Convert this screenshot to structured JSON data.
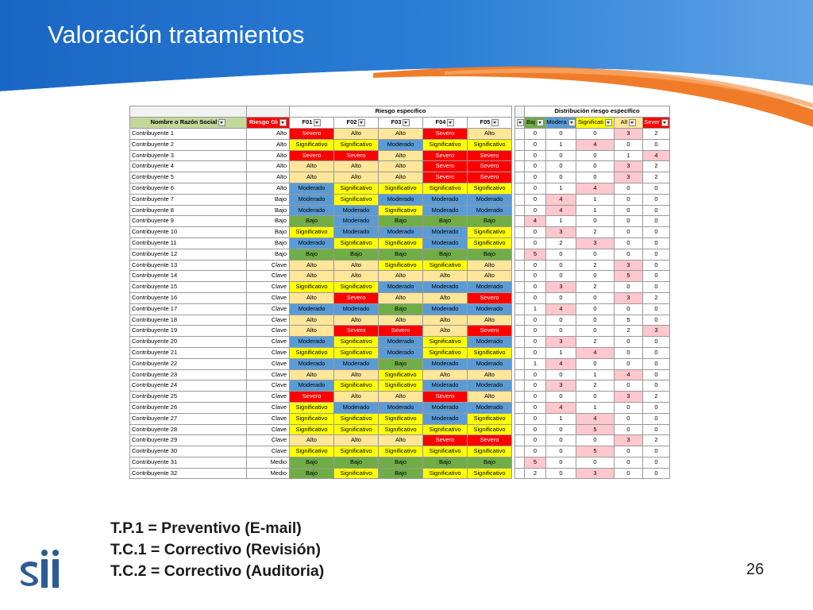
{
  "slide": {
    "title": "Valoración tratamientos",
    "page_number": "26",
    "notes": [
      "T.P.1 = Preventivo (E-mail)",
      "T.C.1 = Correctivo (Revisión)",
      "T.C.2 = Correctivo (Auditoria)"
    ],
    "logo_text": "Sii"
  },
  "colors": {
    "banner_blue": "#1f6fc5",
    "accent_orange": "#f07c2a",
    "severo": "#ff0000",
    "alto": "#ffe699",
    "significativo": "#ffff00",
    "moderado": "#5b9bd5",
    "bajo": "#70ad47",
    "dist_highlight": "#ffc7ce"
  },
  "table": {
    "group_specific": "Riesgo específico",
    "group_distribution": "Distribución riesgo específico",
    "headers": {
      "name": "Nombre o Razón Social",
      "global": "Riesgo Glo",
      "factors": [
        "F01",
        "F02",
        "F03",
        "F04",
        "F05"
      ],
      "distribution": [
        "Baj",
        "Modera",
        "Significati",
        "Alt",
        "Sever"
      ]
    },
    "rows": [
      {
        "name": "Contribuyente 1",
        "global": "Alto",
        "f": [
          "Severo",
          "Alto",
          "Alto",
          "Severo",
          "Alto"
        ],
        "d": [
          "0",
          "0",
          "0",
          "3",
          "2"
        ],
        "dh": [
          false,
          false,
          false,
          true,
          false
        ]
      },
      {
        "name": "Contribuyente 2",
        "global": "Alto",
        "f": [
          "Significativo",
          "Significativo",
          "Moderado",
          "Significativo",
          "Significativo"
        ],
        "d": [
          "0",
          "1",
          "4",
          "0",
          "0"
        ],
        "dh": [
          false,
          false,
          true,
          false,
          false
        ]
      },
      {
        "name": "Contribuyente 3",
        "global": "Alto",
        "f": [
          "Severo",
          "Severo",
          "Alto",
          "Severo",
          "Severo"
        ],
        "d": [
          "0",
          "0",
          "0",
          "1",
          "4"
        ],
        "dh": [
          false,
          false,
          false,
          false,
          true
        ]
      },
      {
        "name": "Contribuyente 4",
        "global": "Alto",
        "f": [
          "Alto",
          "Alto",
          "Alto",
          "Severo",
          "Severo"
        ],
        "d": [
          "0",
          "0",
          "0",
          "3",
          "2"
        ],
        "dh": [
          false,
          false,
          false,
          true,
          false
        ]
      },
      {
        "name": "Contribuyente 5",
        "global": "Alto",
        "f": [
          "Alto",
          "Alto",
          "Alto",
          "Severo",
          "Severo"
        ],
        "d": [
          "0",
          "0",
          "0",
          "3",
          "2"
        ],
        "dh": [
          false,
          false,
          false,
          true,
          false
        ]
      },
      {
        "name": "Contribuyente 6",
        "global": "Alto",
        "f": [
          "Moderado",
          "Significativo",
          "Significativo",
          "Significativo",
          "Significativo"
        ],
        "d": [
          "0",
          "1",
          "4",
          "0",
          "0"
        ],
        "dh": [
          false,
          false,
          true,
          false,
          false
        ]
      },
      {
        "name": "Contribuyente 7",
        "global": "Bajo",
        "f": [
          "Moderado",
          "Significativo",
          "Moderado",
          "Moderado",
          "Moderado"
        ],
        "d": [
          "0",
          "4",
          "1",
          "0",
          "0"
        ],
        "dh": [
          false,
          true,
          false,
          false,
          false
        ]
      },
      {
        "name": "Contribuyente 8",
        "global": "Bajo",
        "f": [
          "Moderado",
          "Moderado",
          "Significativo",
          "Moderado",
          "Moderado"
        ],
        "d": [
          "0",
          "4",
          "1",
          "0",
          "0"
        ],
        "dh": [
          false,
          true,
          false,
          false,
          false
        ]
      },
      {
        "name": "Contribuyente 9",
        "global": "Bajo",
        "f": [
          "Bajo",
          "Moderado",
          "Bajo",
          "Bajo",
          "Bajo"
        ],
        "d": [
          "4",
          "1",
          "0",
          "0",
          "0"
        ],
        "dh": [
          true,
          false,
          false,
          false,
          false
        ]
      },
      {
        "name": "Contribuyente 10",
        "global": "Bajo",
        "f": [
          "Significativo",
          "Moderado",
          "Moderado",
          "Moderado",
          "Significativo"
        ],
        "d": [
          "0",
          "3",
          "2",
          "0",
          "0"
        ],
        "dh": [
          false,
          true,
          false,
          false,
          false
        ]
      },
      {
        "name": "Contribuyente 11",
        "global": "Bajo",
        "f": [
          "Moderado",
          "Significativo",
          "Significativo",
          "Moderado",
          "Significativo"
        ],
        "d": [
          "0",
          "2",
          "3",
          "0",
          "0"
        ],
        "dh": [
          false,
          false,
          true,
          false,
          false
        ]
      },
      {
        "name": "Contribuyente 12",
        "global": "Bajo",
        "f": [
          "Bajo",
          "Bajo",
          "Bajo",
          "Bajo",
          "Bajo"
        ],
        "d": [
          "5",
          "0",
          "0",
          "0",
          "0"
        ],
        "dh": [
          true,
          false,
          false,
          false,
          false
        ]
      },
      {
        "name": "Contribuyente 13",
        "global": "Clave",
        "f": [
          "Alto",
          "Alto",
          "Significativo",
          "Significativo",
          "Alto"
        ],
        "d": [
          "0",
          "0",
          "2",
          "3",
          "0"
        ],
        "dh": [
          false,
          false,
          false,
          true,
          false
        ]
      },
      {
        "name": "Contribuyente 14",
        "global": "Clave",
        "f": [
          "Alto",
          "Alto",
          "Alto",
          "Alto",
          "Alto"
        ],
        "d": [
          "0",
          "0",
          "0",
          "5",
          "0"
        ],
        "dh": [
          false,
          false,
          false,
          true,
          false
        ]
      },
      {
        "name": "Contribuyente 15",
        "global": "Clave",
        "f": [
          "Significativo",
          "Significativo",
          "Moderado",
          "Moderado",
          "Moderado"
        ],
        "d": [
          "0",
          "3",
          "2",
          "0",
          "0"
        ],
        "dh": [
          false,
          true,
          false,
          false,
          false
        ]
      },
      {
        "name": "Contribuyente 16",
        "global": "Clave",
        "f": [
          "Alto",
          "Severo",
          "Alto",
          "Alto",
          "Severo"
        ],
        "d": [
          "0",
          "0",
          "0",
          "3",
          "2"
        ],
        "dh": [
          false,
          false,
          false,
          true,
          false
        ]
      },
      {
        "name": "Contribuyente 17",
        "global": "Clave",
        "f": [
          "Moderado",
          "Moderado",
          "Bajo",
          "Moderado",
          "Moderado"
        ],
        "d": [
          "1",
          "4",
          "0",
          "0",
          "0"
        ],
        "dh": [
          false,
          true,
          false,
          false,
          false
        ]
      },
      {
        "name": "Contribuyente 18",
        "global": "Clave",
        "f": [
          "Alto",
          "Alto",
          "Alto",
          "Alto",
          "Alto"
        ],
        "d": [
          "0",
          "0",
          "0",
          "5",
          "0"
        ],
        "dh": [
          false,
          false,
          false,
          false,
          false
        ]
      },
      {
        "name": "Contribuyente 19",
        "global": "Clave",
        "f": [
          "Alto",
          "Severo",
          "Severo",
          "Alto",
          "Severo"
        ],
        "d": [
          "0",
          "0",
          "0",
          "2",
          "3"
        ],
        "dh": [
          false,
          false,
          false,
          false,
          true
        ]
      },
      {
        "name": "Contribuyente 20",
        "global": "Clave",
        "f": [
          "Moderado",
          "Significativo",
          "Moderado",
          "Significativo",
          "Moderado"
        ],
        "d": [
          "0",
          "3",
          "2",
          "0",
          "0"
        ],
        "dh": [
          false,
          true,
          false,
          false,
          false
        ]
      },
      {
        "name": "Contribuyente 21",
        "global": "Clave",
        "f": [
          "Significativo",
          "Significativo",
          "Moderado",
          "Significativo",
          "Significativo"
        ],
        "d": [
          "0",
          "1",
          "4",
          "0",
          "0"
        ],
        "dh": [
          false,
          false,
          true,
          false,
          false
        ]
      },
      {
        "name": "Contribuyente 22",
        "global": "Clave",
        "f": [
          "Moderado",
          "Moderado",
          "Bajo",
          "Moderado",
          "Moderado"
        ],
        "d": [
          "1",
          "4",
          "0",
          "0",
          "0"
        ],
        "dh": [
          false,
          true,
          false,
          false,
          false
        ]
      },
      {
        "name": "Contribuyente 23",
        "global": "Clave",
        "f": [
          "Alto",
          "Alto",
          "Significativo",
          "Alto",
          "Alto"
        ],
        "d": [
          "0",
          "0",
          "1",
          "4",
          "0"
        ],
        "dh": [
          false,
          false,
          false,
          true,
          false
        ]
      },
      {
        "name": "Contribuyente 24",
        "global": "Clave",
        "f": [
          "Moderado",
          "Significativo",
          "Significativo",
          "Moderado",
          "Moderado"
        ],
        "d": [
          "0",
          "3",
          "2",
          "0",
          "0"
        ],
        "dh": [
          false,
          true,
          false,
          false,
          false
        ]
      },
      {
        "name": "Contribuyente 25",
        "global": "Clave",
        "f": [
          "Severo",
          "Alto",
          "Alto",
          "Severo",
          "Alto"
        ],
        "d": [
          "0",
          "0",
          "0",
          "3",
          "2"
        ],
        "dh": [
          false,
          false,
          false,
          true,
          false
        ]
      },
      {
        "name": "Contribuyente 26",
        "global": "Clave",
        "f": [
          "Significativo",
          "Moderado",
          "Moderado",
          "Moderado",
          "Moderado"
        ],
        "d": [
          "0",
          "4",
          "1",
          "0",
          "0"
        ],
        "dh": [
          false,
          true,
          false,
          false,
          false
        ]
      },
      {
        "name": "Contribuyente 27",
        "global": "Clave",
        "f": [
          "Significativo",
          "Significativo",
          "Significativo",
          "Moderado",
          "Significativo"
        ],
        "d": [
          "0",
          "1",
          "4",
          "0",
          "0"
        ],
        "dh": [
          false,
          false,
          true,
          false,
          false
        ]
      },
      {
        "name": "Contribuyente 28",
        "global": "Clave",
        "f": [
          "Significativo",
          "Significativo",
          "Significativo",
          "Significativo",
          "Significativo"
        ],
        "d": [
          "0",
          "0",
          "5",
          "0",
          "0"
        ],
        "dh": [
          false,
          false,
          true,
          false,
          false
        ]
      },
      {
        "name": "Contribuyente 29",
        "global": "Clave",
        "f": [
          "Alto",
          "Alto",
          "Alto",
          "Severo",
          "Severo"
        ],
        "d": [
          "0",
          "0",
          "0",
          "3",
          "2"
        ],
        "dh": [
          false,
          false,
          false,
          true,
          false
        ]
      },
      {
        "name": "Contribuyente 30",
        "global": "Clave",
        "f": [
          "Significativo",
          "Significativo",
          "Significativo",
          "Significativo",
          "Significativo"
        ],
        "d": [
          "0",
          "0",
          "5",
          "0",
          "0"
        ],
        "dh": [
          false,
          false,
          true,
          false,
          false
        ]
      },
      {
        "name": "Contribuyente 31",
        "global": "Medio",
        "f": [
          "Bajo",
          "Bajo",
          "Bajo",
          "Bajo",
          "Bajo"
        ],
        "d": [
          "5",
          "0",
          "0",
          "0",
          "0"
        ],
        "dh": [
          true,
          false,
          false,
          false,
          false
        ]
      },
      {
        "name": "Contribuyente 32",
        "global": "Medio",
        "f": [
          "Bajo",
          "Significativo",
          "Bajo",
          "Significativo",
          "Significativo"
        ],
        "d": [
          "2",
          "0",
          "3",
          "0",
          "0"
        ],
        "dh": [
          false,
          false,
          true,
          false,
          false
        ]
      }
    ]
  }
}
